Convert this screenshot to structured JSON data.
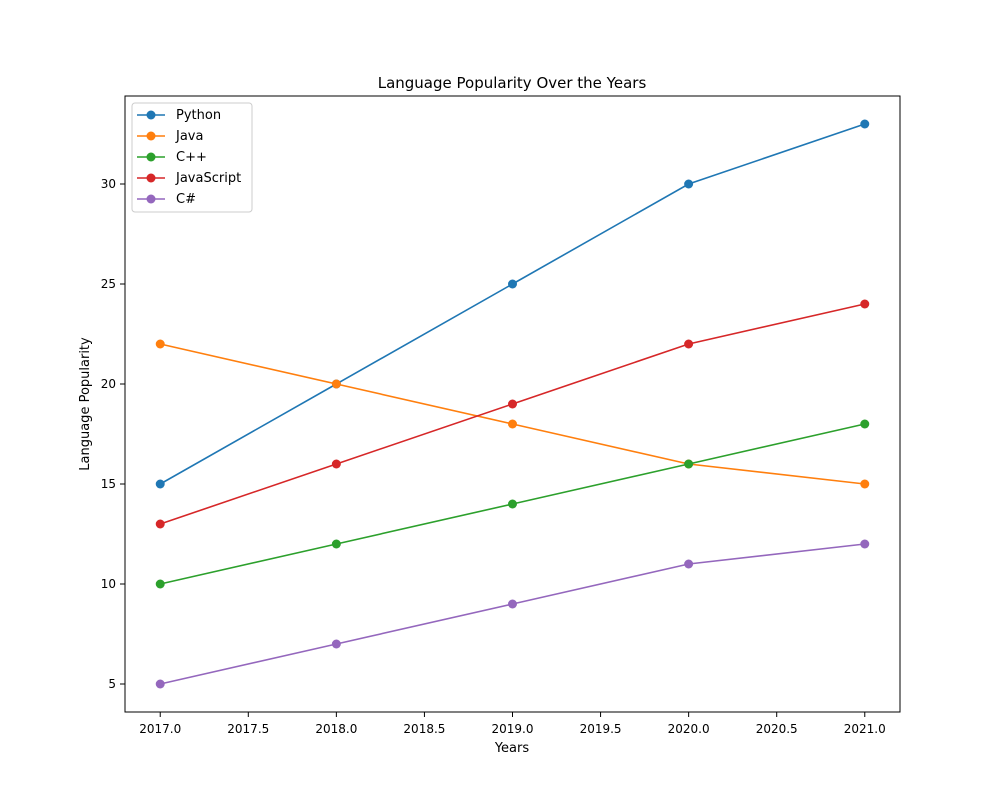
{
  "chart_data": {
    "type": "line",
    "title": "Language Popularity Over the Years",
    "xlabel": "Years",
    "ylabel": "Language Popularity",
    "x": [
      2017,
      2018,
      2019,
      2020,
      2021
    ],
    "xlim": [
      2016.8,
      2021.2
    ],
    "ylim": [
      3.6,
      34.4
    ],
    "x_ticks": [
      2017.0,
      2017.5,
      2018.0,
      2018.5,
      2019.0,
      2019.5,
      2020.0,
      2020.5,
      2021.0
    ],
    "x_tick_labels": [
      "2017.0",
      "2017.5",
      "2018.0",
      "2018.5",
      "2019.0",
      "2019.5",
      "2020.0",
      "2020.5",
      "2021.0"
    ],
    "y_ticks": [
      5,
      10,
      15,
      20,
      25,
      30
    ],
    "y_tick_labels": [
      "5",
      "10",
      "15",
      "20",
      "25",
      "30"
    ],
    "grid": false,
    "legend_position": "top-left",
    "markers": "circle",
    "series": [
      {
        "name": "Python",
        "values": [
          15,
          20,
          25,
          30,
          33
        ],
        "color": "#1f77b4"
      },
      {
        "name": "Java",
        "values": [
          22,
          20,
          18,
          16,
          15
        ],
        "color": "#ff7f0e"
      },
      {
        "name": "C++",
        "values": [
          10,
          12,
          14,
          16,
          18
        ],
        "color": "#2ca02c"
      },
      {
        "name": "JavaScript",
        "values": [
          13,
          16,
          19,
          22,
          24
        ],
        "color": "#d62728"
      },
      {
        "name": "C#",
        "values": [
          5,
          7,
          9,
          11,
          12
        ],
        "color": "#9467bd"
      }
    ]
  }
}
